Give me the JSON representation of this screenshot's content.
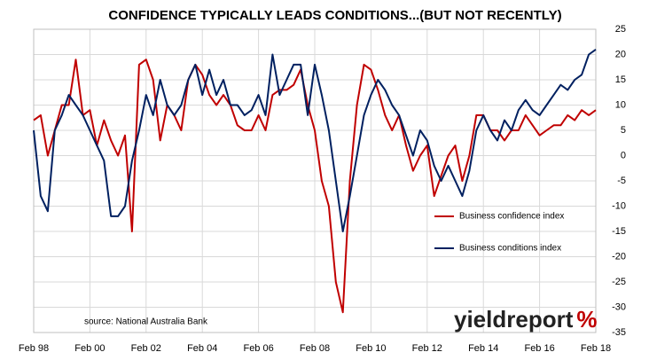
{
  "chart_data": {
    "type": "line",
    "title": "CONFIDENCE TYPICALLY LEADS CONDITIONS...(BUT NOT RECENTLY)",
    "categories": [
      "Feb 98",
      null,
      null,
      null,
      null,
      null,
      null,
      null,
      "Feb 00",
      null,
      null,
      null,
      null,
      null,
      null,
      null,
      "Feb 02",
      null,
      null,
      null,
      null,
      null,
      null,
      null,
      "Feb 04",
      null,
      null,
      null,
      null,
      null,
      null,
      null,
      "Feb 06",
      null,
      null,
      null,
      null,
      null,
      null,
      null,
      "Feb 08",
      null,
      null,
      null,
      null,
      null,
      null,
      null,
      "Feb 10",
      null,
      null,
      null,
      null,
      null,
      null,
      null,
      "Feb 12",
      null,
      null,
      null,
      null,
      null,
      null,
      null,
      "Feb 14",
      null,
      null,
      null,
      null,
      null,
      null,
      null,
      "Feb 16",
      null,
      null,
      null,
      null,
      null,
      null,
      null,
      "Feb 18"
    ],
    "series": [
      {
        "name": "Business confidence index",
        "color": "#c00000",
        "values": [
          7,
          8,
          0,
          5,
          10,
          10,
          19,
          8,
          9,
          2,
          7,
          3,
          0,
          4,
          -15,
          18,
          19,
          15,
          3,
          10,
          8,
          5,
          15,
          18,
          16,
          12,
          10,
          12,
          10,
          6,
          5,
          5,
          8,
          5,
          12,
          13,
          13,
          14,
          17,
          10,
          5,
          -5,
          -10,
          -25,
          -31,
          -5,
          10,
          18,
          17,
          13,
          8,
          5,
          8,
          2,
          -3,
          0,
          2,
          -8,
          -4,
          0,
          2,
          -5,
          0,
          8,
          8,
          5,
          5,
          3,
          5,
          5,
          8,
          6,
          4,
          5,
          6,
          6,
          8,
          7,
          9,
          8,
          9
        ]
      },
      {
        "name": "Business conditions index",
        "color": "#002060",
        "values": [
          5,
          -8,
          -11,
          5,
          8,
          12,
          10,
          8,
          5,
          2,
          -1,
          -12,
          -12,
          -10,
          -1,
          5,
          12,
          8,
          15,
          10,
          8,
          10,
          15,
          18,
          12,
          17,
          12,
          15,
          10,
          10,
          8,
          9,
          12,
          8,
          20,
          12,
          15,
          18,
          18,
          8,
          18,
          12,
          5,
          -5,
          -15,
          -8,
          0,
          8,
          12,
          15,
          13,
          10,
          8,
          4,
          0,
          5,
          3,
          -2,
          -5,
          -2,
          -5,
          -8,
          -3,
          5,
          8,
          5,
          3,
          7,
          5,
          9,
          11,
          9,
          8,
          10,
          12,
          14,
          13,
          15,
          16,
          20,
          21
        ]
      }
    ],
    "ylim": [
      -35,
      25
    ],
    "yticks": [
      25,
      20,
      15,
      10,
      5,
      0,
      -5,
      -10,
      -15,
      -20,
      -25,
      -30,
      -35
    ],
    "grid": true,
    "source": "source: National Australia Bank",
    "logo": "yieldreport",
    "logo_symbol": "%"
  }
}
